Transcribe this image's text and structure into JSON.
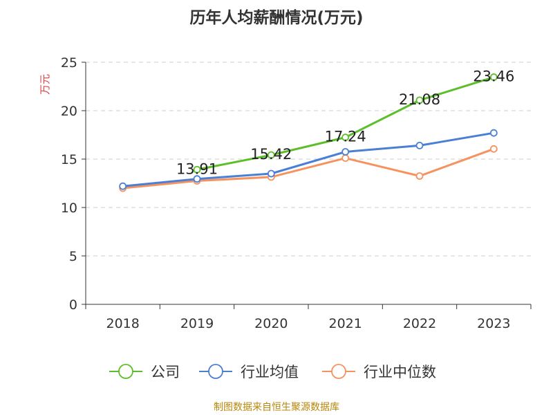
{
  "chart_data": {
    "type": "line",
    "title": "历年人均薪酬情况(万元)",
    "ylabel": "万元",
    "xlabel": "",
    "categories": [
      "2018",
      "2019",
      "2020",
      "2021",
      "2022",
      "2023"
    ],
    "ylim": [
      0,
      25
    ],
    "yticks": [
      0,
      5,
      10,
      15,
      20,
      25
    ],
    "grid": true,
    "legend_position": "bottom",
    "series": [
      {
        "name": "公司",
        "color": "#5cbf2a",
        "values": [
          null,
          13.91,
          15.42,
          17.24,
          21.08,
          23.46
        ],
        "labels": [
          "",
          "13.91",
          "15.42",
          "17.24",
          "21.08",
          "23.46"
        ]
      },
      {
        "name": "行业均值",
        "color": "#4a7fd6",
        "values": [
          12.2,
          12.95,
          13.5,
          15.75,
          16.4,
          17.7
        ]
      },
      {
        "name": "行业中位数",
        "color": "#f5925e",
        "values": [
          12.0,
          12.75,
          13.15,
          15.1,
          13.25,
          16.05
        ]
      }
    ]
  },
  "footer": {
    "source": "制图数据来自恒生聚源数据库"
  }
}
